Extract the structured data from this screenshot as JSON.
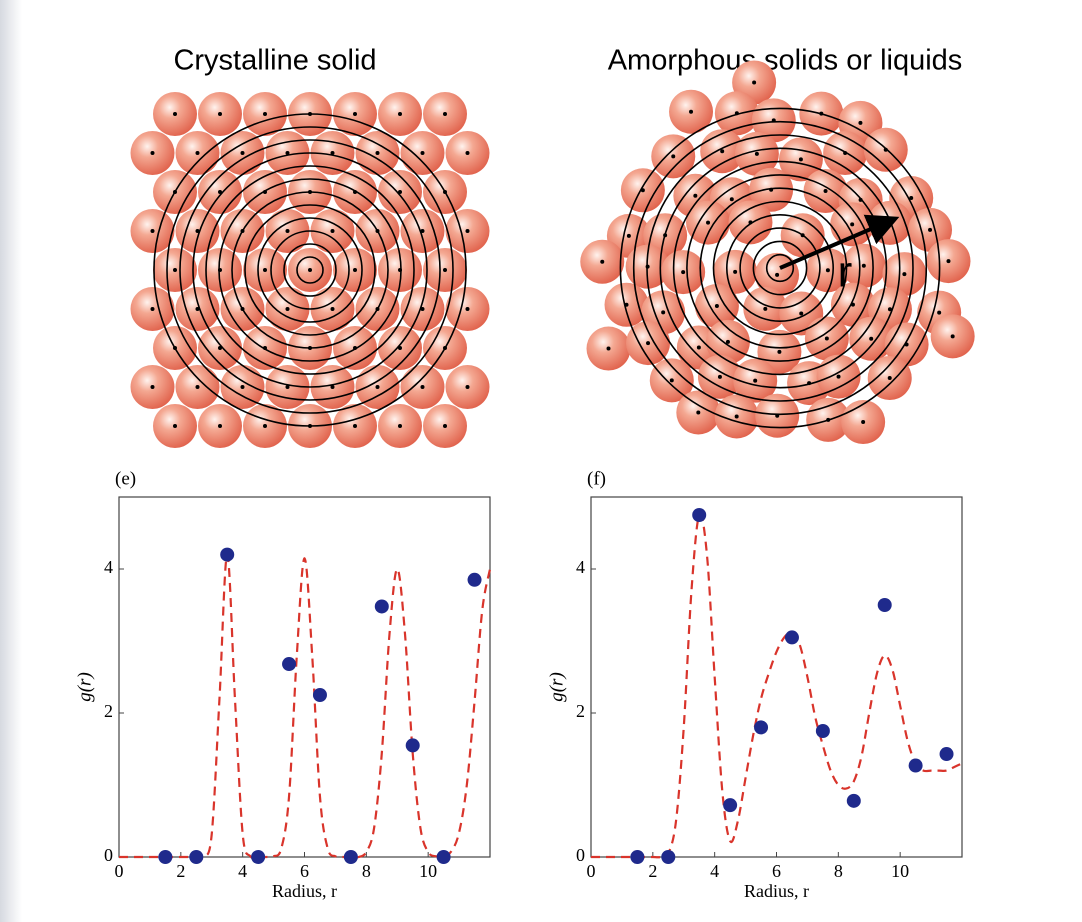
{
  "illustrations": [
    {
      "title": "Crystalline solid"
    },
    {
      "title": "Amorphous solids or liquids",
      "label": "r"
    }
  ],
  "chart_data": [
    {
      "type": "scatter",
      "title": "(e)",
      "xlabel": "Radius, r",
      "ylabel": "g(r)",
      "xlim": [
        0,
        12
      ],
      "ylim": [
        0,
        5
      ],
      "xticks": [
        0,
        2,
        4,
        6,
        8,
        10
      ],
      "yticks": [
        0,
        2,
        4
      ],
      "points": {
        "color": "#1f2a8c",
        "x": [
          1.5,
          2.5,
          3.5,
          4.5,
          5.5,
          6.5,
          7.5,
          8.5,
          9.5,
          10.5,
          11.5
        ],
        "values": [
          0,
          0,
          4.2,
          0,
          2.68,
          2.25,
          0,
          3.48,
          1.55,
          0,
          3.85
        ]
      },
      "curve": {
        "color": "#d9342b",
        "dashed": true,
        "x": [
          0,
          0.25,
          0.5,
          0.75,
          1,
          1.25,
          1.5,
          1.75,
          2,
          2.25,
          2.5,
          2.75,
          3,
          3.25,
          3.5,
          3.75,
          4,
          4.25,
          4.5,
          4.75,
          5,
          5.25,
          5.5,
          5.75,
          6,
          6.25,
          6.5,
          6.75,
          7,
          7.25,
          7.5,
          7.75,
          8,
          8.25,
          8.5,
          8.75,
          9,
          9.25,
          9.5,
          9.75,
          10,
          10.25,
          10.5,
          10.75,
          11,
          11.25,
          11.5,
          11.75,
          12
        ],
        "values": [
          0,
          0,
          0,
          0,
          0,
          0,
          0,
          0,
          0,
          0,
          0,
          0,
          0.32,
          2.2,
          4.2,
          2.2,
          0.32,
          0.01,
          0,
          0,
          0.01,
          0.12,
          0.84,
          2.79,
          4.15,
          2.79,
          0.84,
          0.12,
          0.01,
          0,
          0,
          0,
          0.07,
          0.4,
          1.44,
          3.1,
          4.0,
          3.1,
          1.44,
          0.4,
          0.07,
          0.01,
          0.02,
          0.08,
          0.34,
          1.0,
          2.16,
          3.43,
          4.0
        ]
      }
    },
    {
      "type": "scatter",
      "title": "(f)",
      "xlabel": "Radius, r",
      "ylabel": "g(r)",
      "xlim": [
        0,
        12
      ],
      "ylim": [
        0,
        5
      ],
      "xticks": [
        0,
        2,
        4,
        6,
        8,
        10
      ],
      "yticks": [
        0,
        2,
        4
      ],
      "points": {
        "color": "#1f2a8c",
        "x": [
          1.5,
          2.5,
          3.5,
          4.5,
          5.5,
          6.5,
          7.5,
          8.5,
          9.5,
          10.5,
          11.5
        ],
        "values": [
          0,
          0,
          4.75,
          0.72,
          1.8,
          3.05,
          1.75,
          0.78,
          3.5,
          1.27,
          1.43
        ]
      },
      "curve": {
        "color": "#d9342b",
        "dashed": true,
        "x": [
          0,
          0.25,
          0.5,
          0.75,
          1,
          1.25,
          1.5,
          1.75,
          2,
          2.25,
          2.5,
          2.75,
          3,
          3.25,
          3.5,
          3.75,
          4,
          4.25,
          4.5,
          4.75,
          5,
          5.25,
          5.5,
          5.75,
          6,
          6.25,
          6.5,
          6.75,
          7,
          7.25,
          7.5,
          7.75,
          8,
          8.25,
          8.5,
          8.75,
          9,
          9.25,
          9.5,
          9.75,
          10,
          10.25,
          10.5,
          10.75,
          11,
          11.25,
          11.5,
          11.75,
          12
        ],
        "values": [
          0,
          0,
          0,
          0,
          0,
          0,
          0,
          0,
          0,
          0,
          0.05,
          0.5,
          1.8,
          3.7,
          4.75,
          4.2,
          2.5,
          0.9,
          0.22,
          0.5,
          1.1,
          1.7,
          2.2,
          2.55,
          2.85,
          3.05,
          3.12,
          2.95,
          2.5,
          1.95,
          1.55,
          1.2,
          1.0,
          0.95,
          1.05,
          1.4,
          2.0,
          2.55,
          2.8,
          2.6,
          2.1,
          1.6,
          1.3,
          1.2,
          1.2,
          1.2,
          1.2,
          1.25,
          1.3
        ]
      }
    }
  ]
}
